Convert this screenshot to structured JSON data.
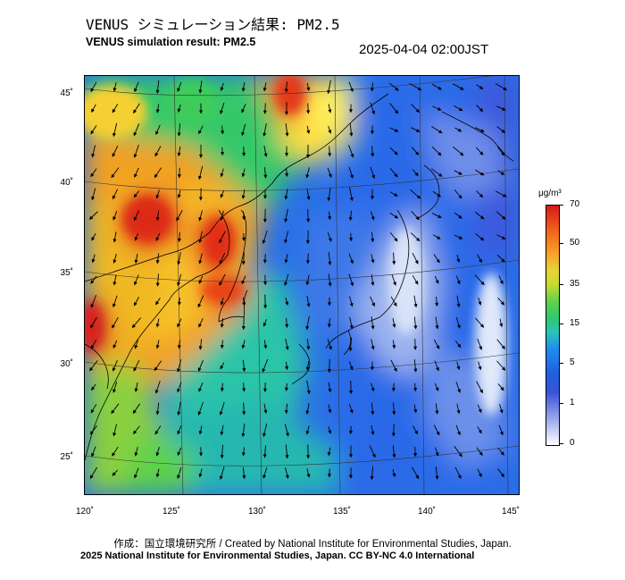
{
  "title_jp": "VENUS シミュレーション結果: PM2.5",
  "title_en": "VENUS simulation result: PM2.5",
  "timestamp": "2025-04-04 02:00JST",
  "map": {
    "latitudes": [
      "45˚",
      "40˚",
      "35˚",
      "30˚",
      "25˚"
    ],
    "longitudes": [
      "120˚",
      "125˚",
      "130˚",
      "135˚",
      "140˚",
      "145˚"
    ]
  },
  "colorbar": {
    "unit": "μg/m³",
    "ticks": [
      "70",
      "50",
      "35",
      "15",
      "5",
      "1",
      "0"
    ],
    "colors": [
      "#d7191c",
      "#f9a02a",
      "#5fd24a",
      "#2ec86e",
      "#1e8cf0",
      "#8fa0e8",
      "#ffffff"
    ]
  },
  "credit": "作成：国立環境研究所 / Created by National Institute for Environmental Studies, Japan.",
  "copyright": "2025 National Institute for Environmental Studies, Japan. CC BY-NC 4.0 International"
}
